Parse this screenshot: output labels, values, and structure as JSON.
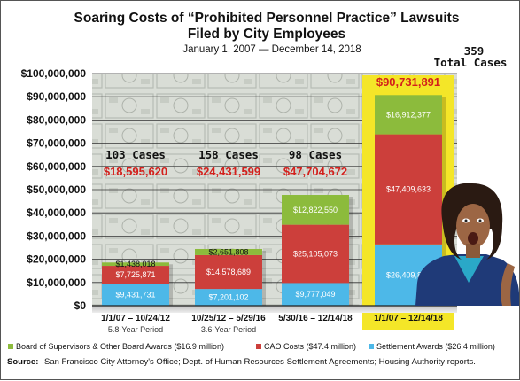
{
  "colors": {
    "green": "#8cbb3c",
    "red": "#cc3f3b",
    "blue": "#4db8e8",
    "highlight": "#f4e628",
    "total_red": "#d3201c"
  },
  "header": {
    "title_line1": "Soaring Costs of “Prohibited Personnel Practice” Lawsuits",
    "title_line2": "Filed by City Employees",
    "date_range": "January 1, 2007 — December 14, 2018",
    "overall_cases_number": "359",
    "overall_cases_label": "Total Cases"
  },
  "footer": {
    "source_label": "Source:",
    "source_text": "San Francisco City Attorney's Office; Dept. of Human Resources Settlement Agreements; Housing Authority reports."
  },
  "illustration": {
    "description_icon": "surprised-woman-photo"
  },
  "chart_data": {
    "type": "bar",
    "stacked": true,
    "ylim": [
      0,
      100000000
    ],
    "yticks": [
      "$0",
      "$10,000,000",
      "$20,000,000",
      "$30,000,000",
      "$40,000,000",
      "$50,000,000",
      "$60,000,000",
      "$70,000,000",
      "$80,000,000",
      "$90,000,000",
      "$100,000,000"
    ],
    "categories": [
      "1/1/07 – 10/24/12",
      "10/25/12 – 5/29/16",
      "5/30/16 – 12/14/18",
      "1/1/07 – 12/14/18"
    ],
    "periods": [
      "5.8-Year Period",
      "3.6-Year Period",
      "",
      ""
    ],
    "case_counts": [
      "103 Cases",
      "158 Cases",
      "98 Cases",
      ""
    ],
    "totals": [
      "$18,595,620",
      "$24,431,599",
      "$47,704,672",
      "$90,731,891"
    ],
    "highlight_index": 3,
    "series": [
      {
        "name": "Settlement Awards ($26.4 million)",
        "color": "#4db8e8",
        "values": [
          9431731,
          7201102,
          9777049,
          26409882
        ],
        "labels": [
          "$9,431,731",
          "$7,201,102",
          "$9,777,049",
          "$26,409,882"
        ]
      },
      {
        "name": "CAO Costs ($47.4 million)",
        "color": "#cc3f3b",
        "values": [
          7725871,
          14578689,
          25105073,
          47409633
        ],
        "labels": [
          "$7,725,871",
          "$14,578,689",
          "$25,105,073",
          "$47,409,633"
        ]
      },
      {
        "name": "Board of Supervisors & Other Board Awards ($16.9 million)",
        "color": "#8cbb3c",
        "values": [
          1438018,
          2651808,
          12822550,
          16912377
        ],
        "labels": [
          "$1,438,018",
          "$2,651,808",
          "$12,822,550",
          "$16,912,377"
        ]
      }
    ],
    "legend_order": [
      2,
      1,
      0
    ],
    "legend_position": "bottom"
  }
}
